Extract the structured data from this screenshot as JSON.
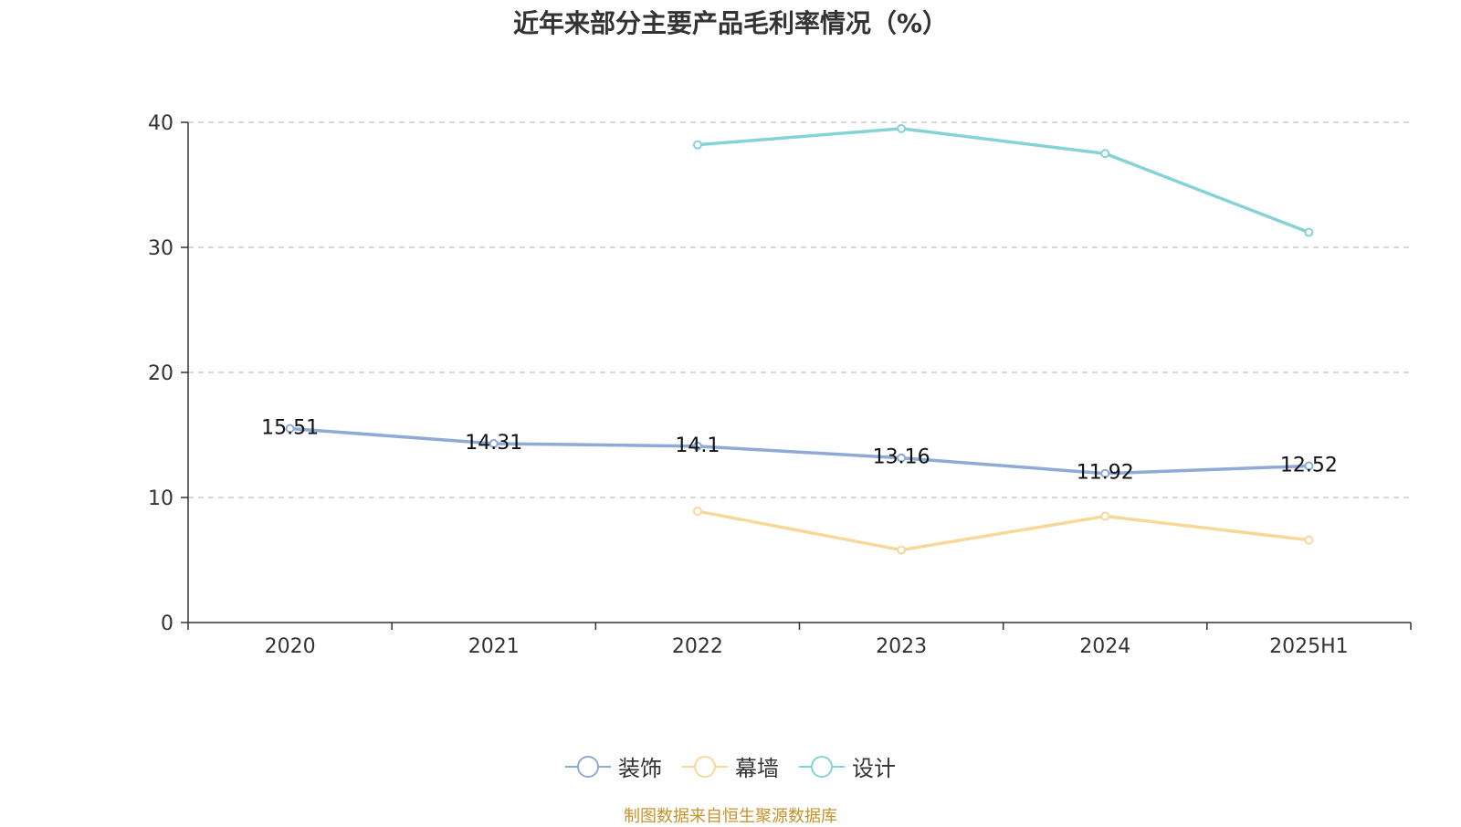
{
  "chart_data": {
    "type": "line",
    "title": "近年来部分主要产品毛利率情况（%）",
    "categories": [
      "2020",
      "2021",
      "2022",
      "2023",
      "2024",
      "2025H1"
    ],
    "ylim": [
      0,
      40
    ],
    "yticks": [
      0,
      10,
      20,
      30,
      40
    ],
    "grid": true,
    "legend_position": "bottom",
    "series": [
      {
        "name": "装饰",
        "color": "#8eaad8",
        "labeled": true,
        "values": [
          15.51,
          14.31,
          14.1,
          13.16,
          11.92,
          12.52
        ]
      },
      {
        "name": "幕墙",
        "color": "#f8d89a",
        "labeled": false,
        "values": [
          null,
          null,
          8.9,
          5.8,
          8.5,
          6.6
        ]
      },
      {
        "name": "设计",
        "color": "#86d3d6",
        "labeled": false,
        "values": [
          null,
          null,
          38.2,
          39.5,
          37.5,
          31.2
        ]
      }
    ]
  },
  "source": "制图数据来自恒生聚源数据库"
}
